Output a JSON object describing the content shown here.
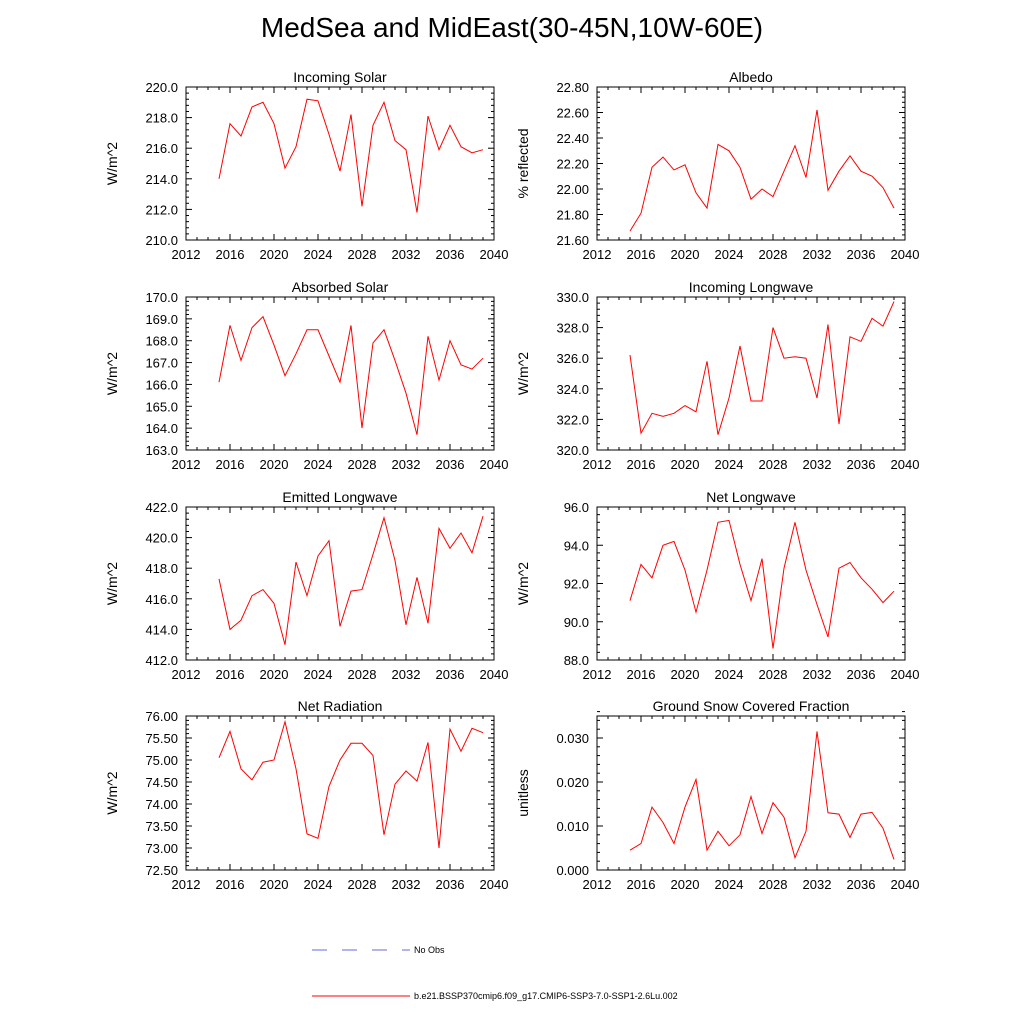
{
  "page": {
    "title": "MedSea and MidEast(30-45N,10W-60E)"
  },
  "legend": {
    "items": [
      {
        "label": "No Obs",
        "color": "#6a6ad8",
        "dash": true
      },
      {
        "label": "b.e21.BSSP370cmip6.f09_g17.CMIP6-SSP3-7.0-SSP1-2.6Lu.002",
        "color": "#ff0000",
        "dash": false
      }
    ]
  },
  "chart_data": [
    {
      "type": "line",
      "title": "Incoming Solar",
      "ylabel": "W/m^2",
      "xlim": [
        2012,
        2040
      ],
      "ylim": [
        210,
        220
      ],
      "xticks": [
        2012,
        2016,
        2020,
        2024,
        2028,
        2032,
        2036,
        2040
      ],
      "yticks": [
        210,
        212,
        214,
        216,
        218,
        220
      ],
      "ydecimals": 1,
      "x": [
        2015,
        2016,
        2017,
        2018,
        2019,
        2020,
        2021,
        2022,
        2023,
        2024,
        2025,
        2026,
        2027,
        2028,
        2029,
        2030,
        2031,
        2032,
        2033,
        2034,
        2035,
        2036,
        2037,
        2038,
        2039
      ],
      "series": [
        {
          "name": "b.e21.BSSP370cmip6.f09_g17.CMIP6-SSP3-7.0-SSP1-2.6Lu.002",
          "color": "#ff0000",
          "values": [
            214.0,
            217.6,
            216.8,
            218.7,
            219.0,
            217.6,
            214.7,
            216.1,
            219.2,
            219.1,
            216.9,
            214.5,
            218.2,
            212.2,
            217.5,
            219.0,
            216.5,
            215.9,
            211.8,
            218.1,
            215.9,
            217.5,
            216.1,
            215.7,
            215.9
          ]
        }
      ]
    },
    {
      "type": "line",
      "title": "Albedo",
      "ylabel": "% reflected",
      "xlim": [
        2012,
        2040
      ],
      "ylim": [
        21.6,
        22.8
      ],
      "xticks": [
        2012,
        2016,
        2020,
        2024,
        2028,
        2032,
        2036,
        2040
      ],
      "yticks": [
        21.6,
        21.8,
        22.0,
        22.2,
        22.4,
        22.6,
        22.8
      ],
      "ydecimals": 2,
      "x": [
        2015,
        2016,
        2017,
        2018,
        2019,
        2020,
        2021,
        2022,
        2023,
        2024,
        2025,
        2026,
        2027,
        2028,
        2029,
        2030,
        2031,
        2032,
        2033,
        2034,
        2035,
        2036,
        2037,
        2038,
        2039
      ],
      "series": [
        {
          "name": "b.e21.BSSP370cmip6.f09_g17.CMIP6-SSP3-7.0-SSP1-2.6Lu.002",
          "color": "#ff0000",
          "values": [
            21.67,
            21.81,
            22.17,
            22.25,
            22.15,
            22.19,
            21.97,
            21.85,
            22.35,
            22.3,
            22.17,
            21.92,
            22.0,
            21.94,
            22.14,
            22.34,
            22.09,
            22.62,
            21.99,
            22.14,
            22.26,
            22.14,
            22.1,
            22.01,
            21.85
          ]
        }
      ]
    },
    {
      "type": "line",
      "title": "Absorbed Solar",
      "ylabel": "W/m^2",
      "xlim": [
        2012,
        2040
      ],
      "ylim": [
        163,
        170
      ],
      "xticks": [
        2012,
        2016,
        2020,
        2024,
        2028,
        2032,
        2036,
        2040
      ],
      "yticks": [
        163,
        164,
        165,
        166,
        167,
        168,
        169,
        170
      ],
      "ydecimals": 1,
      "x": [
        2015,
        2016,
        2017,
        2018,
        2019,
        2020,
        2021,
        2022,
        2023,
        2024,
        2025,
        2026,
        2027,
        2028,
        2029,
        2030,
        2031,
        2032,
        2033,
        2034,
        2035,
        2036,
        2037,
        2038,
        2039
      ],
      "series": [
        {
          "name": "b.e21.BSSP370cmip6.f09_g17.CMIP6-SSP3-7.0-SSP1-2.6Lu.002",
          "color": "#ff0000",
          "values": [
            166.1,
            168.7,
            167.1,
            168.6,
            169.1,
            167.8,
            166.4,
            167.4,
            168.5,
            168.5,
            167.3,
            166.1,
            168.7,
            164.0,
            167.9,
            168.5,
            167.1,
            165.6,
            163.7,
            168.2,
            166.2,
            168.0,
            166.9,
            166.7,
            167.2
          ]
        }
      ]
    },
    {
      "type": "line",
      "title": "Incoming Longwave",
      "ylabel": "W/m^2",
      "xlim": [
        2012,
        2040
      ],
      "ylim": [
        320,
        330
      ],
      "xticks": [
        2012,
        2016,
        2020,
        2024,
        2028,
        2032,
        2036,
        2040
      ],
      "yticks": [
        320,
        322,
        324,
        326,
        328,
        330
      ],
      "ydecimals": 1,
      "x": [
        2015,
        2016,
        2017,
        2018,
        2019,
        2020,
        2021,
        2022,
        2023,
        2024,
        2025,
        2026,
        2027,
        2028,
        2029,
        2030,
        2031,
        2032,
        2033,
        2034,
        2035,
        2036,
        2037,
        2038,
        2039
      ],
      "series": [
        {
          "name": "b.e21.BSSP370cmip6.f09_g17.CMIP6-SSP3-7.0-SSP1-2.6Lu.002",
          "color": "#ff0000",
          "values": [
            326.2,
            321.1,
            322.4,
            322.2,
            322.4,
            322.9,
            322.5,
            325.8,
            321.0,
            323.4,
            326.8,
            323.2,
            323.2,
            328.0,
            326.0,
            326.1,
            326.0,
            323.4,
            328.2,
            321.7,
            327.4,
            327.1,
            328.6,
            328.1,
            329.7
          ]
        }
      ]
    },
    {
      "type": "line",
      "title": "Emitted Longwave",
      "ylabel": "W/m^2",
      "xlim": [
        2012,
        2040
      ],
      "ylim": [
        412,
        422
      ],
      "xticks": [
        2012,
        2016,
        2020,
        2024,
        2028,
        2032,
        2036,
        2040
      ],
      "yticks": [
        412,
        414,
        416,
        418,
        420,
        422
      ],
      "ydecimals": 1,
      "x": [
        2015,
        2016,
        2017,
        2018,
        2019,
        2020,
        2021,
        2022,
        2023,
        2024,
        2025,
        2026,
        2027,
        2028,
        2029,
        2030,
        2031,
        2032,
        2033,
        2034,
        2035,
        2036,
        2037,
        2038,
        2039
      ],
      "series": [
        {
          "name": "b.e21.BSSP370cmip6.f09_g17.CMIP6-SSP3-7.0-SSP1-2.6Lu.002",
          "color": "#ff0000",
          "values": [
            417.3,
            414.0,
            414.6,
            416.2,
            416.6,
            415.7,
            413.0,
            418.4,
            416.2,
            418.8,
            419.8,
            414.2,
            416.5,
            416.6,
            418.9,
            421.3,
            418.5,
            414.3,
            417.4,
            414.4,
            420.6,
            419.3,
            420.3,
            419.0,
            421.4
          ]
        }
      ]
    },
    {
      "type": "line",
      "title": "Net Longwave",
      "ylabel": "W/m^2",
      "xlim": [
        2012,
        2040
      ],
      "ylim": [
        88,
        96
      ],
      "xticks": [
        2012,
        2016,
        2020,
        2024,
        2028,
        2032,
        2036,
        2040
      ],
      "yticks": [
        88,
        90,
        92,
        94,
        96
      ],
      "ydecimals": 1,
      "x": [
        2015,
        2016,
        2017,
        2018,
        2019,
        2020,
        2021,
        2022,
        2023,
        2024,
        2025,
        2026,
        2027,
        2028,
        2029,
        2030,
        2031,
        2032,
        2033,
        2034,
        2035,
        2036,
        2037,
        2038,
        2039
      ],
      "series": [
        {
          "name": "b.e21.BSSP370cmip6.f09_g17.CMIP6-SSP3-7.0-SSP1-2.6Lu.002",
          "color": "#ff0000",
          "values": [
            91.1,
            93.0,
            92.3,
            94.0,
            94.2,
            92.7,
            90.5,
            92.7,
            95.2,
            95.3,
            93.0,
            91.1,
            93.3,
            88.6,
            92.8,
            95.2,
            92.7,
            90.9,
            89.2,
            92.8,
            93.1,
            92.3,
            91.7,
            91.0,
            91.6
          ]
        }
      ]
    },
    {
      "type": "line",
      "title": "Net Radiation",
      "ylabel": "W/m^2",
      "xlim": [
        2012,
        2040
      ],
      "ylim": [
        72.5,
        76.0
      ],
      "xticks": [
        2012,
        2016,
        2020,
        2024,
        2028,
        2032,
        2036,
        2040
      ],
      "yticks": [
        72.5,
        73.0,
        73.5,
        74.0,
        74.5,
        75.0,
        75.5,
        76.0
      ],
      "ydecimals": 2,
      "x": [
        2015,
        2016,
        2017,
        2018,
        2019,
        2020,
        2021,
        2022,
        2023,
        2024,
        2025,
        2026,
        2027,
        2028,
        2029,
        2030,
        2031,
        2032,
        2033,
        2034,
        2035,
        2036,
        2037,
        2038,
        2039
      ],
      "series": [
        {
          "name": "b.e21.BSSP370cmip6.f09_g17.CMIP6-SSP3-7.0-SSP1-2.6Lu.002",
          "color": "#ff0000",
          "values": [
            75.05,
            75.65,
            74.8,
            74.55,
            74.95,
            75.0,
            75.87,
            74.8,
            73.32,
            73.22,
            74.4,
            75.0,
            75.38,
            75.38,
            75.1,
            73.3,
            74.45,
            74.75,
            74.52,
            75.4,
            73.0,
            75.7,
            75.2,
            75.72,
            75.62
          ]
        }
      ]
    },
    {
      "type": "line",
      "title": "Ground Snow Covered Fraction",
      "ylabel": "unitless",
      "xlim": [
        2012,
        2040
      ],
      "ylim": [
        0,
        0.035
      ],
      "xticks": [
        2012,
        2016,
        2020,
        2024,
        2028,
        2032,
        2036,
        2040
      ],
      "yticks": [
        0,
        0.01,
        0.02,
        0.03
      ],
      "ydecimals": 3,
      "x": [
        2015,
        2016,
        2017,
        2018,
        2019,
        2020,
        2021,
        2022,
        2023,
        2024,
        2025,
        2026,
        2027,
        2028,
        2029,
        2030,
        2031,
        2032,
        2033,
        2034,
        2035,
        2036,
        2037,
        2038,
        2039
      ],
      "series": [
        {
          "name": "b.e21.BSSP370cmip6.f09_g17.CMIP6-SSP3-7.0-SSP1-2.6Lu.002",
          "color": "#ff0000",
          "values": [
            0.0045,
            0.006,
            0.0143,
            0.0108,
            0.006,
            0.0143,
            0.0206,
            0.0045,
            0.0088,
            0.0055,
            0.008,
            0.0167,
            0.0083,
            0.0153,
            0.012,
            0.0028,
            0.0088,
            0.0315,
            0.013,
            0.0127,
            0.0074,
            0.0127,
            0.0131,
            0.0095,
            0.0024
          ]
        }
      ]
    }
  ]
}
